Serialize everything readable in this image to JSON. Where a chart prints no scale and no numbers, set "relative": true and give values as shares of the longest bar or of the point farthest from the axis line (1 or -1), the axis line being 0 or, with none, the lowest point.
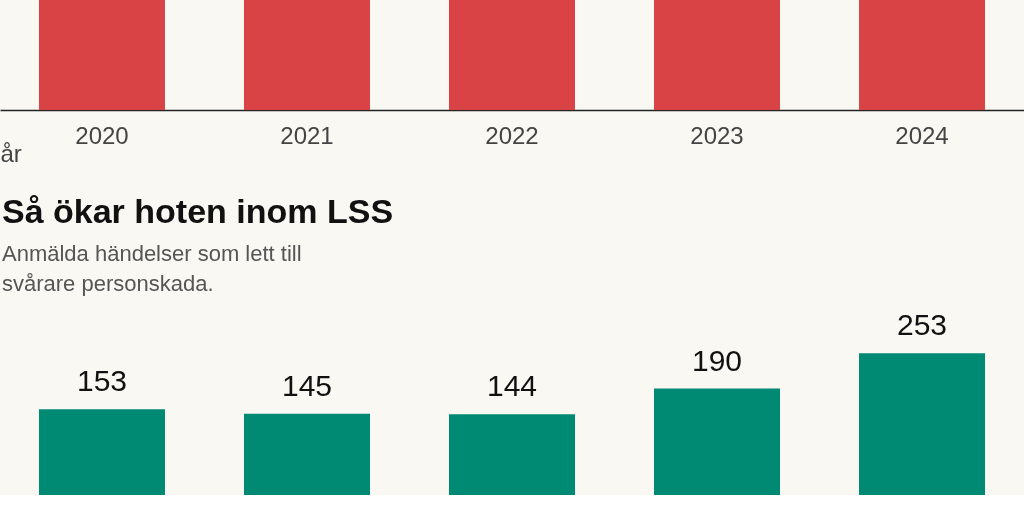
{
  "chart_data": [
    {
      "type": "bar",
      "categories": [
        "2020",
        "2021",
        "2022",
        "2023",
        "2024"
      ],
      "values": [
        1,
        1,
        1,
        1,
        1
      ],
      "relative": true,
      "color": "#d94345",
      "xlabel": "år",
      "grid": false
    },
    {
      "type": "bar",
      "title": "Så ökar hoten inom LSS",
      "subtitle": "Anmälda händelser som lett till  svårare personskada.",
      "categories": [
        null,
        null,
        null,
        null,
        null
      ],
      "values": [
        153,
        145,
        144,
        190,
        253
      ],
      "color": "#008a73",
      "data_labels": true,
      "grid": false
    }
  ]
}
